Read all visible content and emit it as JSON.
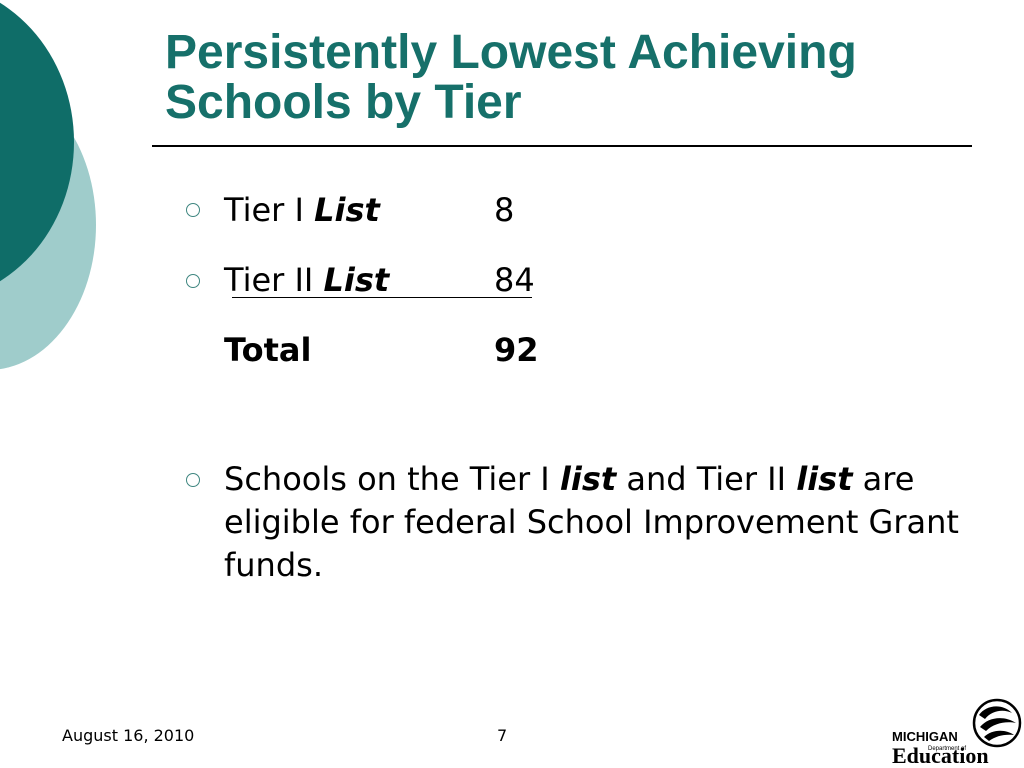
{
  "title": {
    "line1": "Persistently Lowest Achieving",
    "line2": "Schools by Tier"
  },
  "tiers": [
    {
      "label_prefix": "Tier I ",
      "label_emphasis": "List",
      "value": "8"
    },
    {
      "label_prefix": "Tier II ",
      "label_emphasis": "List",
      "value": "84"
    }
  ],
  "total": {
    "label": "Total",
    "value": "92"
  },
  "note": {
    "part1": "Schools on the Tier I ",
    "emphasis1": "list",
    "part2": " and Tier II ",
    "emphasis2": "list",
    "part3": " are eligible for federal School Improvement Grant funds."
  },
  "footer": {
    "date": "August 16, 2010",
    "page": "7"
  },
  "logo": {
    "line1": "MICHIGAN",
    "line2": "Department of",
    "line3": "Education"
  },
  "colors": {
    "title": "#16706a",
    "circle_dark": "#0f6d68",
    "circle_light": "#9fcccb",
    "bullet": "#3f8680"
  }
}
